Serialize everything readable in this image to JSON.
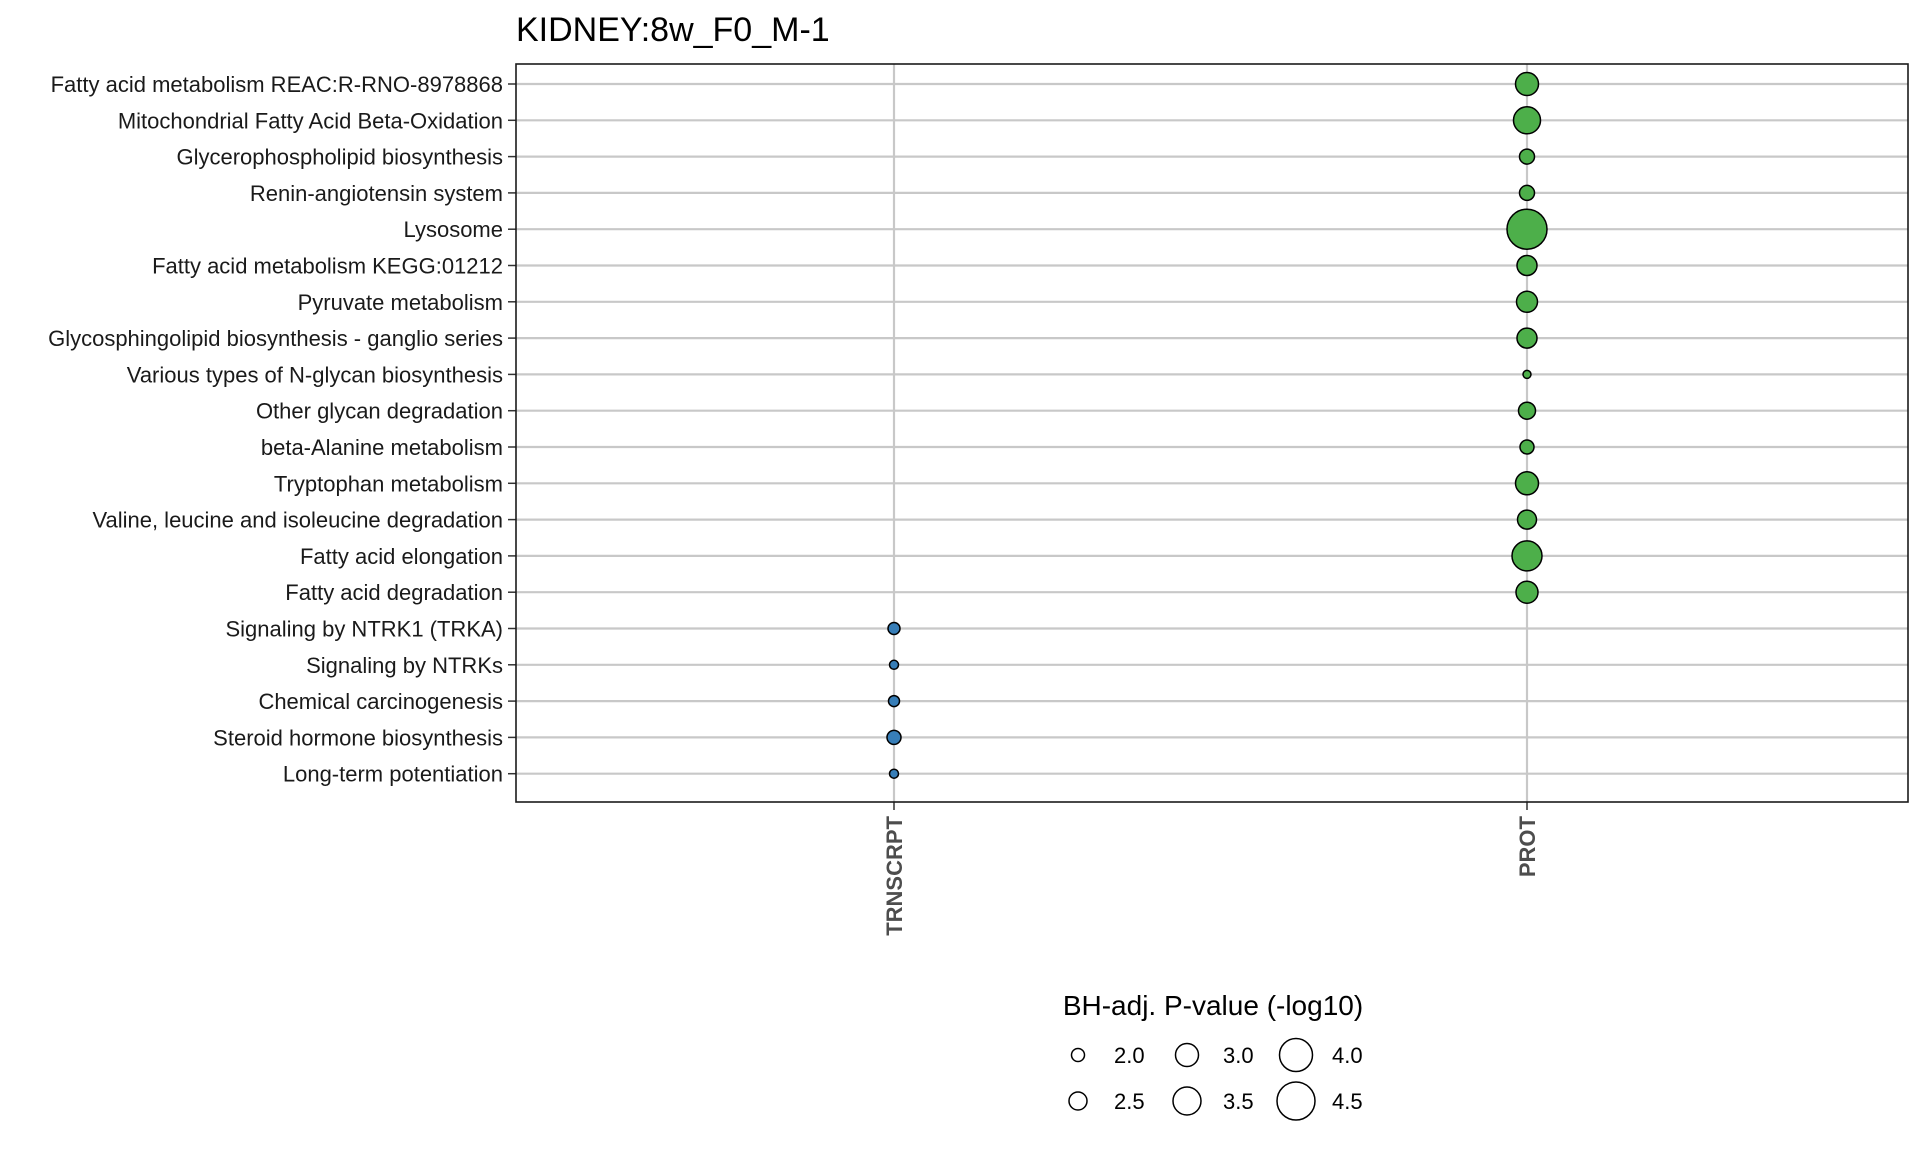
{
  "chart_data": {
    "type": "scatter",
    "title": "KIDNEY:8w_F0_M-1",
    "x_categories": [
      "TRNSCRPT",
      "PROT"
    ],
    "y_categories": [
      "Fatty acid metabolism REAC:R-RNO-8978868",
      "Mitochondrial Fatty Acid Beta-Oxidation",
      "Glycerophospholipid biosynthesis",
      "Renin-angiotensin system",
      "Lysosome",
      "Fatty acid metabolism KEGG:01212",
      "Pyruvate metabolism",
      "Glycosphingolipid biosynthesis - ganglio series",
      "Various types of N-glycan biosynthesis",
      "Other glycan degradation",
      "beta-Alanine metabolism",
      "Tryptophan metabolism",
      "Valine, leucine and isoleucine degradation",
      "Fatty acid elongation",
      "Fatty acid degradation",
      "Signaling by NTRK1 (TRKA)",
      "Signaling by NTRKs",
      "Chemical carcinogenesis",
      "Steroid hormone biosynthesis",
      "Long-term potentiation"
    ],
    "points": [
      {
        "y": "Fatty acid metabolism REAC:R-RNO-8978868",
        "x": "PROT",
        "value": 3.0
      },
      {
        "y": "Mitochondrial Fatty Acid Beta-Oxidation",
        "x": "PROT",
        "value": 3.4
      },
      {
        "y": "Glycerophospholipid biosynthesis",
        "x": "PROT",
        "value": 2.2
      },
      {
        "y": "Renin-angiotensin system",
        "x": "PROT",
        "value": 2.2
      },
      {
        "y": "Lysosome",
        "x": "PROT",
        "value": 4.7
      },
      {
        "y": "Fatty acid metabolism KEGG:01212",
        "x": "PROT",
        "value": 2.7
      },
      {
        "y": "Pyruvate metabolism",
        "x": "PROT",
        "value": 2.8
      },
      {
        "y": "Glycosphingolipid biosynthesis - ganglio series",
        "x": "PROT",
        "value": 2.7
      },
      {
        "y": "Various types of N-glycan biosynthesis",
        "x": "PROT",
        "value": 1.5
      },
      {
        "y": "Other glycan degradation",
        "x": "PROT",
        "value": 2.4
      },
      {
        "y": "beta-Alanine metabolism",
        "x": "PROT",
        "value": 2.1
      },
      {
        "y": "Tryptophan metabolism",
        "x": "PROT",
        "value": 3.0
      },
      {
        "y": "Valine, leucine and isoleucine degradation",
        "x": "PROT",
        "value": 2.6
      },
      {
        "y": "Fatty acid elongation",
        "x": "PROT",
        "value": 3.7
      },
      {
        "y": "Fatty acid degradation",
        "x": "PROT",
        "value": 2.9
      },
      {
        "y": "Signaling by NTRK1 (TRKA)",
        "x": "TRNSCRPT",
        "value": 1.9
      },
      {
        "y": "Signaling by NTRKs",
        "x": "TRNSCRPT",
        "value": 1.6
      },
      {
        "y": "Chemical carcinogenesis",
        "x": "TRNSCRPT",
        "value": 1.8
      },
      {
        "y": "Steroid hormone biosynthesis",
        "x": "TRNSCRPT",
        "value": 2.1
      },
      {
        "y": "Long-term potentiation",
        "x": "TRNSCRPT",
        "value": 1.6
      }
    ],
    "colors": {
      "PROT": "#4daf4a",
      "TRNSCRPT": "#377eb8"
    },
    "legend": {
      "title": "BH-adj. P-value (-log10)",
      "position": "bottom",
      "entries": [
        {
          "value": 2.0,
          "label": "2.0"
        },
        {
          "value": 2.5,
          "label": "2.5"
        },
        {
          "value": 3.0,
          "label": "3.0"
        },
        {
          "value": 3.5,
          "label": "3.5"
        },
        {
          "value": 4.0,
          "label": "4.0"
        },
        {
          "value": 4.5,
          "label": "4.5"
        }
      ]
    },
    "grid": true
  }
}
